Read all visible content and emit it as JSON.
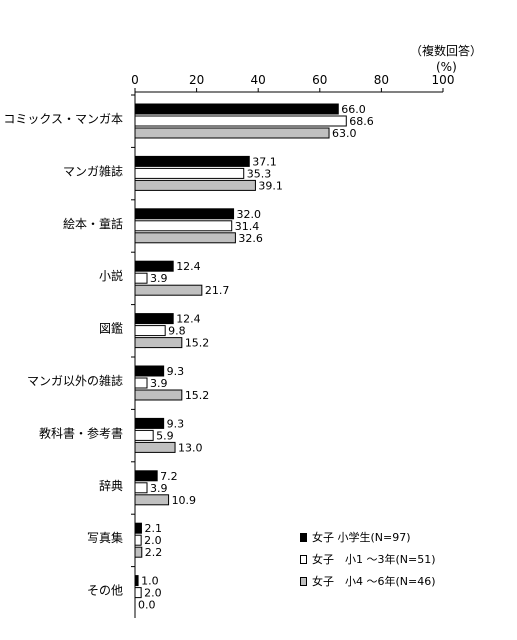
{
  "chart_data": {
    "type": "bar",
    "orientation": "horizontal",
    "note": "（複数回答）",
    "unit": "(%)",
    "xlim": [
      0,
      100
    ],
    "xticks": [
      "0",
      "20",
      "40",
      "60",
      "80",
      "100"
    ],
    "categories": [
      "コミックス・マンガ本",
      "マンガ雑誌",
      "絵本・童話",
      "小説",
      "図鑑",
      "マンガ以外の雑誌",
      "教科書・参考書",
      "辞典",
      "写真集",
      "その他"
    ],
    "series": [
      {
        "name": "女子 小学生(N=97)",
        "color": "#000000",
        "values": [
          66.0,
          37.1,
          32.0,
          12.4,
          12.4,
          9.3,
          9.3,
          7.2,
          2.1,
          1.0
        ]
      },
      {
        "name": "女子　小1 ～3年(N=51)",
        "color": "#ffffff",
        "values": [
          68.6,
          35.3,
          31.4,
          3.9,
          9.8,
          3.9,
          5.9,
          3.9,
          2.0,
          2.0
        ]
      },
      {
        "name": "女子　小4 ～6年(N=46)",
        "color": "#c0c0c0",
        "values": [
          63.0,
          39.1,
          32.6,
          21.7,
          15.2,
          15.2,
          13.0,
          10.9,
          2.2,
          0.0
        ]
      }
    ],
    "legend_position": "bottom-right",
    "grid": false
  }
}
